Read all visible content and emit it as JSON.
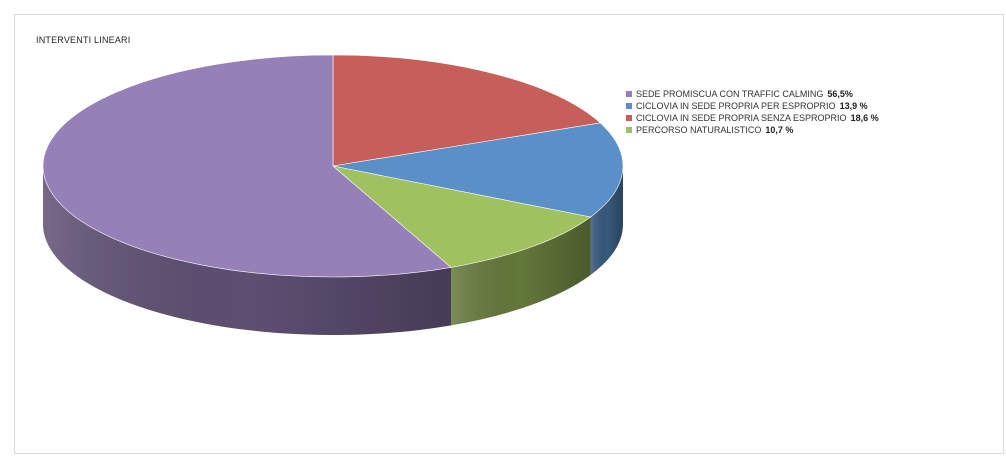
{
  "chart_data": {
    "type": "pie",
    "title": "INTERVENTI LINEARI",
    "style": "3d",
    "legend_position": "right",
    "slices": [
      {
        "label": "SEDE PROMISCUA CON TRAFFIC CALMING",
        "value_label": "56,5%",
        "value": 56.5,
        "color": "#9680b8"
      },
      {
        "label": "CICLOVIA IN SEDE PROPRIA PER ESPROPRIO",
        "value_label": "13,9 %",
        "value": 13.9,
        "color": "#5b8fc7"
      },
      {
        "label": "CICLOVIA IN SEDE PROPRIA SENZA ESPROPRIO",
        "value_label": "18,6 %",
        "value": 18.6,
        "color": "#c65e5a"
      },
      {
        "label": "PERCORSO NATURALISTICO",
        "value_label": "10,7 %",
        "value": 10.7,
        "color": "#9fc15f"
      }
    ]
  }
}
